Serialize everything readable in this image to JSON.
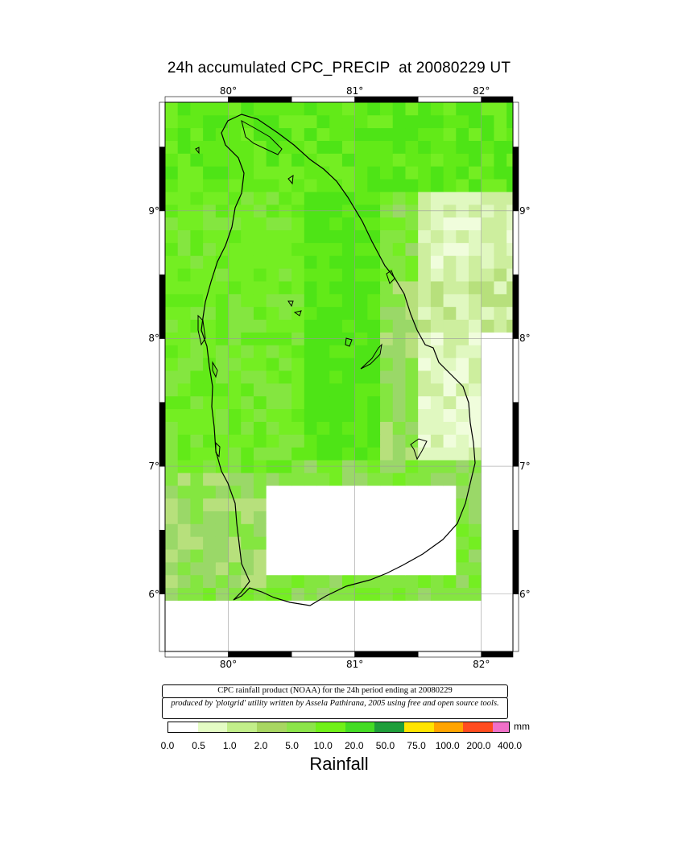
{
  "title": "24h accumulated CPC_PRECIP  at 20080229 UT",
  "map": {
    "lon_range": [
      79.5,
      82.25
    ],
    "lat_range": [
      5.55,
      9.85
    ],
    "lon_ticks": [
      "80°",
      "81°",
      "82°"
    ],
    "lat_ticks": [
      "9°",
      "8°",
      "7°",
      "6°"
    ],
    "coastline_color": "#000000",
    "frame_color": "#000000"
  },
  "notes": {
    "source": "CPC rainfall product (NOAA) for the 24h period ending at 20080229",
    "credit": "produced by 'plotgrid' utility written by Assela Pathirana, 2005 using free and open source tools."
  },
  "colorbar": {
    "unit": "mm",
    "title": "Rainfall",
    "tick_labels": [
      "0.0",
      "0.5",
      "1.0",
      "2.0",
      "5.0",
      "10.0",
      "20.0",
      "50.0",
      "75.0",
      "100.0",
      "200.0",
      "400.0"
    ],
    "colors": [
      "#ffffff",
      "#e4fcc4",
      "#c2ee8a",
      "#a8d662",
      "#8ce44a",
      "#70f018",
      "#44dc24",
      "#1e9e3a",
      "#ffe400",
      "#ffa400",
      "#ff4c20",
      "#f070c8"
    ]
  },
  "chart_data": {
    "type": "heatmap",
    "title": "24h accumulated CPC_PRECIP  at 20080229 UT",
    "variable": "Rainfall",
    "unit": "mm",
    "date": "20080229",
    "xlim": [
      79.5,
      82.25
    ],
    "ylim": [
      5.55,
      9.85
    ],
    "cell_deg": 0.1,
    "levels": [
      0.0,
      0.5,
      1.0,
      2.0,
      5.0,
      10.0,
      20.0,
      50.0,
      75.0,
      100.0,
      200.0,
      400.0
    ],
    "regions": [
      {
        "lon": [
          79.5,
          82.25
        ],
        "lat": [
          9.1,
          9.85
        ],
        "value": 8
      },
      {
        "lon": [
          79.5,
          80.6
        ],
        "lat": [
          6.9,
          9.1
        ],
        "value": 7
      },
      {
        "lon": [
          80.6,
          81.2
        ],
        "lat": [
          7.0,
          9.1
        ],
        "value": 9
      },
      {
        "lon": [
          81.2,
          81.5
        ],
        "lat": [
          7.0,
          8.4
        ],
        "value": 5
      },
      {
        "lon": [
          81.5,
          82.25
        ],
        "lat": [
          8.5,
          9.1
        ],
        "value": 2
      },
      {
        "lon": [
          81.5,
          82.25
        ],
        "lat": [
          8.05,
          8.5
        ],
        "value": 3
      },
      {
        "lon": [
          81.5,
          82.0
        ],
        "lat": [
          7.0,
          8.05
        ],
        "value": 2
      },
      {
        "lon": [
          82.0,
          82.25
        ],
        "lat": [
          5.55,
          8.05
        ],
        "value": 0
      },
      {
        "lon": [
          79.5,
          80.25
        ],
        "lat": [
          6.0,
          6.9
        ],
        "value": 5
      },
      {
        "lon": [
          80.25,
          81.8
        ],
        "lat": [
          6.1,
          6.8
        ],
        "value": 0
      },
      {
        "lon": [
          79.5,
          82.25
        ],
        "lat": [
          5.55,
          5.9
        ],
        "value": 0
      }
    ]
  }
}
